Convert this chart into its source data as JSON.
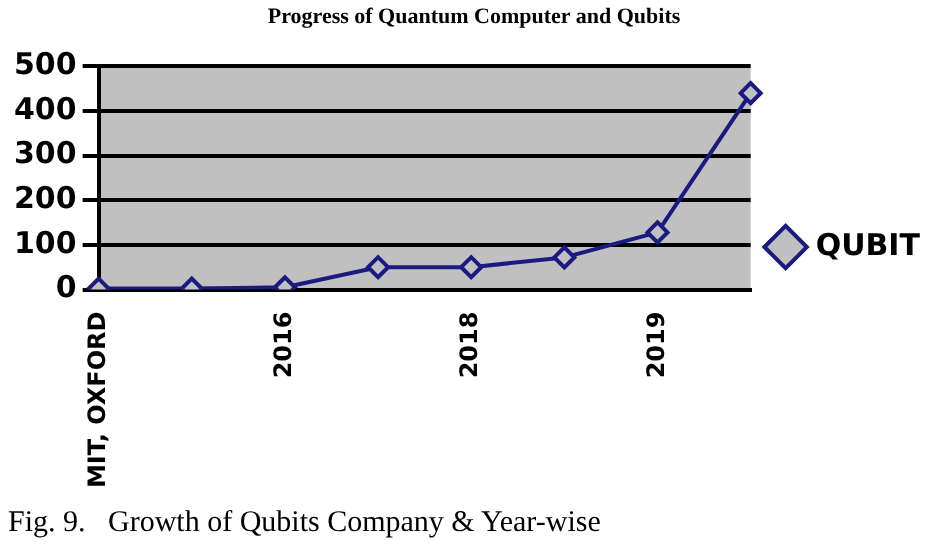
{
  "chart_data": {
    "type": "line",
    "title": "Progress of Quantum Computer and Qubits",
    "categories": [
      "MIT, OXFORD",
      null,
      "2016",
      null,
      "2018",
      null,
      "2019",
      null
    ],
    "series": [
      {
        "name": "QUBIT",
        "color": "#1a1a80",
        "values": [
          2,
          2,
          5,
          50,
          50,
          72,
          128,
          440
        ]
      }
    ],
    "ylim": [
      0,
      500
    ],
    "yticks": [
      0,
      100,
      200,
      300,
      400,
      500
    ],
    "grid": "y",
    "legend": "right",
    "marker": "diamond",
    "line_style": "solid",
    "annotations": [
      "Fig. 9.   Growth of Qubits Company & Year-wise"
    ]
  }
}
